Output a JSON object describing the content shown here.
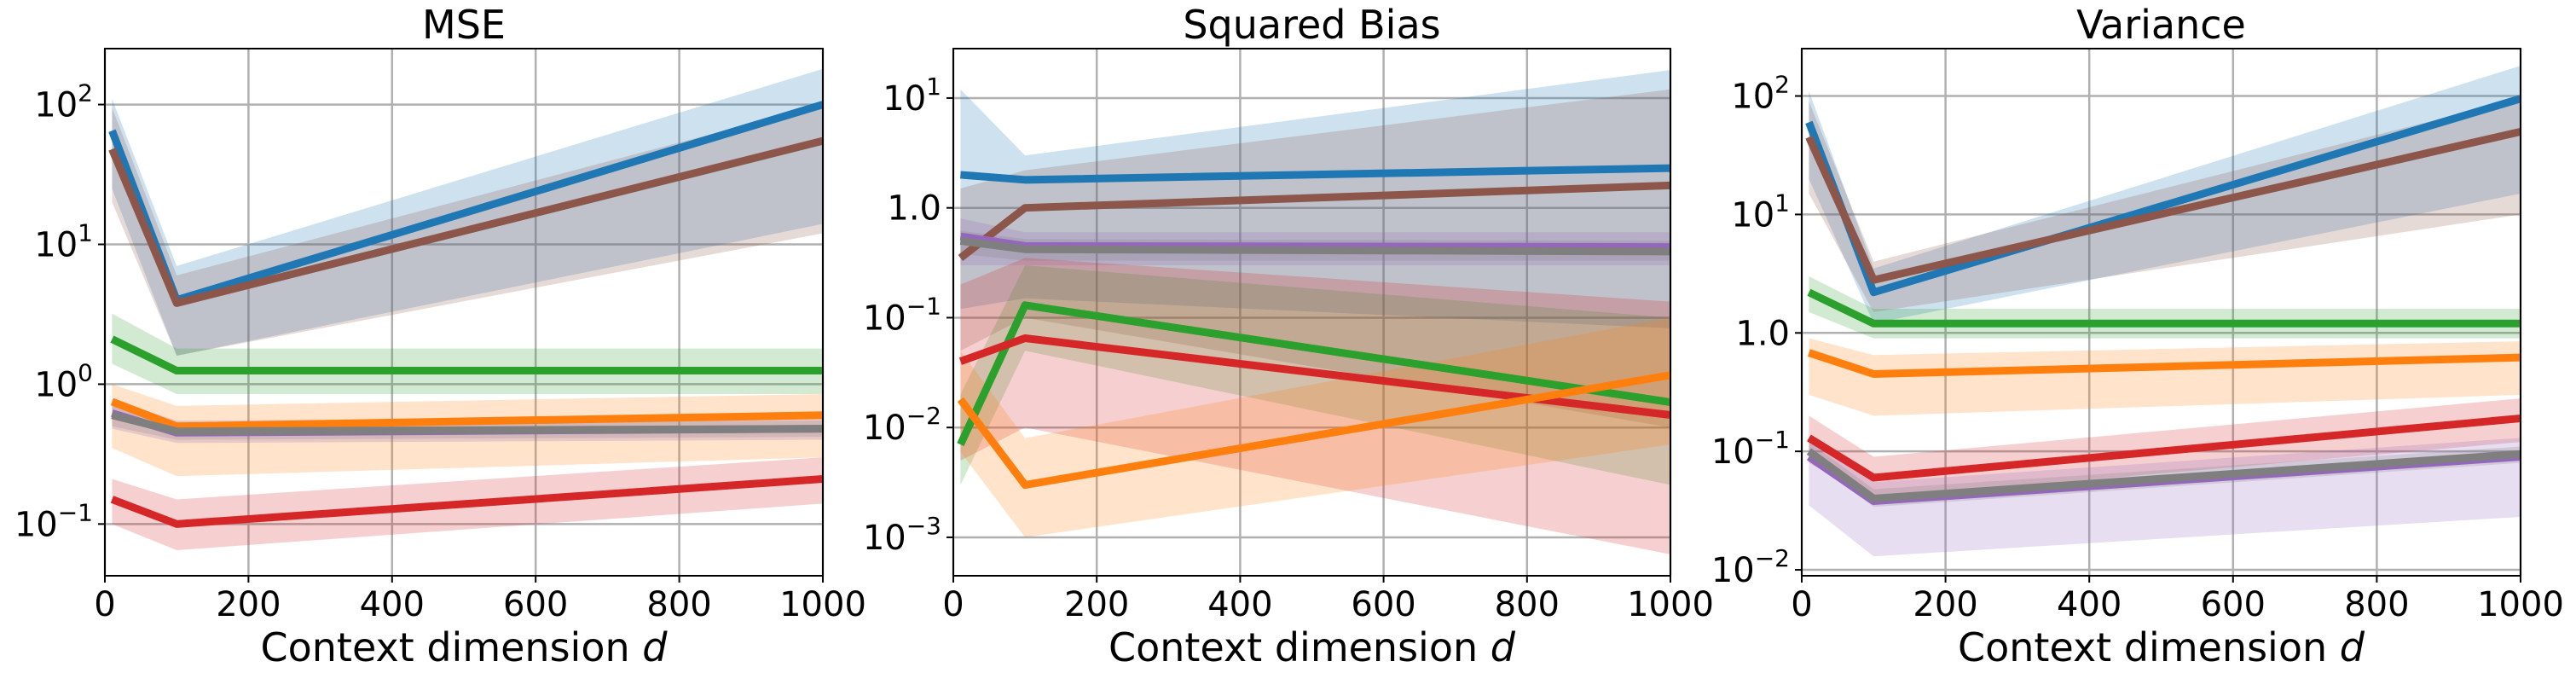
{
  "chart_data": [
    {
      "type": "line",
      "title": "MSE",
      "xlabel": "Context dimension",
      "xlabel_var": "d",
      "xlim": [
        0,
        1000
      ],
      "ylim_log10": [
        -1.37,
        2.4
      ],
      "yscale": "log",
      "xticks": [
        0,
        200,
        400,
        600,
        800,
        1000
      ],
      "yticks": [
        {
          "exp": -1,
          "label": "10",
          "sup": "−1"
        },
        {
          "exp": 0,
          "label": "10",
          "sup": "0"
        },
        {
          "exp": 1,
          "label": "10",
          "sup": "1"
        },
        {
          "exp": 2,
          "label": "10",
          "sup": "2"
        }
      ],
      "grid": true,
      "x": [
        10,
        100,
        1000
      ],
      "series": [
        {
          "color": "#1f77b4",
          "values": [
            65,
            4.0,
            100
          ],
          "lower": [
            25,
            1.6,
            14
          ],
          "upper": [
            110,
            7.0,
            180
          ]
        },
        {
          "color": "#8c564b",
          "values": [
            48,
            3.8,
            55
          ],
          "lower": [
            20,
            1.6,
            12
          ],
          "upper": [
            95,
            6.0,
            100
          ]
        },
        {
          "color": "#2ca02c",
          "values": [
            2.1,
            1.25,
            1.25
          ],
          "lower": [
            1.4,
            0.85,
            0.85
          ],
          "upper": [
            3.2,
            1.8,
            1.8
          ]
        },
        {
          "color": "#ff7f0e",
          "values": [
            0.75,
            0.5,
            0.6
          ],
          "lower": [
            0.35,
            0.22,
            0.3
          ],
          "upper": [
            1.0,
            0.7,
            0.85
          ]
        },
        {
          "color": "#9467bd",
          "values": [
            0.62,
            0.45,
            0.48
          ],
          "lower": [
            0.48,
            0.38,
            0.4
          ],
          "upper": [
            0.78,
            0.55,
            0.58
          ]
        },
        {
          "color": "#7f7f7f",
          "values": [
            0.6,
            0.46,
            0.48
          ],
          "lower": [
            0.5,
            0.4,
            0.42
          ],
          "upper": [
            0.7,
            0.52,
            0.55
          ]
        },
        {
          "color": "#d62728",
          "values": [
            0.15,
            0.1,
            0.21
          ],
          "lower": [
            0.1,
            0.065,
            0.14
          ],
          "upper": [
            0.21,
            0.15,
            0.3
          ]
        }
      ]
    },
    {
      "type": "line",
      "title": "Squared Bias",
      "xlabel": "Context dimension",
      "xlabel_var": "d",
      "xlim": [
        0,
        1000
      ],
      "ylim_log10": [
        -3.35,
        1.45
      ],
      "yscale": "log",
      "xticks": [
        0,
        200,
        400,
        600,
        800,
        1000
      ],
      "yticks": [
        {
          "exp": -3,
          "label": "10",
          "sup": "−3"
        },
        {
          "exp": -2,
          "label": "10",
          "sup": "−2"
        },
        {
          "exp": -1,
          "label": "10",
          "sup": "−1"
        },
        {
          "exp": 0,
          "label": "1.0",
          "sup": ""
        },
        {
          "exp": 1,
          "label": "10",
          "sup": "1"
        }
      ],
      "grid": true,
      "x": [
        10,
        100,
        1000
      ],
      "series": [
        {
          "color": "#1f77b4",
          "values": [
            2.0,
            1.8,
            2.3
          ],
          "lower": [
            0.12,
            0.15,
            0.08
          ],
          "upper": [
            12,
            3.0,
            18
          ]
        },
        {
          "color": "#8c564b",
          "values": [
            0.35,
            1.0,
            1.6
          ],
          "lower": [
            0.05,
            0.1,
            0.01
          ],
          "upper": [
            1.5,
            2.2,
            12
          ]
        },
        {
          "color": "#9467bd",
          "values": [
            0.55,
            0.45,
            0.44
          ],
          "lower": [
            0.3,
            0.3,
            0.3
          ],
          "upper": [
            0.8,
            0.6,
            0.6
          ]
        },
        {
          "color": "#7f7f7f",
          "values": [
            0.5,
            0.42,
            0.4
          ],
          "lower": [
            0.38,
            0.33,
            0.33
          ],
          "upper": [
            0.62,
            0.52,
            0.5
          ]
        },
        {
          "color": "#2ca02c",
          "values": [
            0.007,
            0.13,
            0.017
          ],
          "lower": [
            0.003,
            0.05,
            0.003
          ],
          "upper": [
            0.02,
            0.3,
            0.1
          ]
        },
        {
          "color": "#d62728",
          "values": [
            0.04,
            0.065,
            0.013
          ],
          "lower": [
            0.005,
            0.01,
            0.0007
          ],
          "upper": [
            0.2,
            0.35,
            0.14
          ]
        },
        {
          "color": "#ff7f0e",
          "values": [
            0.018,
            0.003,
            0.03
          ],
          "lower": [
            0.006,
            0.001,
            0.007
          ],
          "upper": [
            0.05,
            0.008,
            0.1
          ]
        }
      ]
    },
    {
      "type": "line",
      "title": "Variance",
      "xlabel": "Context dimension",
      "xlabel_var": "d",
      "xlim": [
        0,
        1000
      ],
      "ylim_log10": [
        -2.05,
        2.4
      ],
      "yscale": "log",
      "xticks": [
        0,
        200,
        400,
        600,
        800,
        1000
      ],
      "yticks": [
        {
          "exp": -2,
          "label": "10",
          "sup": "−2"
        },
        {
          "exp": -1,
          "label": "10",
          "sup": "−1"
        },
        {
          "exp": 0,
          "label": "1.0",
          "sup": ""
        },
        {
          "exp": 1,
          "label": "10",
          "sup": "1"
        },
        {
          "exp": 2,
          "label": "10",
          "sup": "2"
        }
      ],
      "grid": true,
      "x": [
        10,
        100,
        1000
      ],
      "series": [
        {
          "color": "#1f77b4",
          "values": [
            60,
            2.2,
            95
          ],
          "lower": [
            20,
            1.2,
            15
          ],
          "upper": [
            110,
            3.5,
            180
          ]
        },
        {
          "color": "#8c564b",
          "values": [
            45,
            2.8,
            50
          ],
          "lower": [
            15,
            1.5,
            10
          ],
          "upper": [
            90,
            4.0,
            95
          ]
        },
        {
          "color": "#2ca02c",
          "values": [
            2.2,
            1.2,
            1.2
          ],
          "lower": [
            1.5,
            0.9,
            0.9
          ],
          "upper": [
            3.0,
            1.6,
            1.6
          ]
        },
        {
          "color": "#ff7f0e",
          "values": [
            0.68,
            0.45,
            0.62
          ],
          "lower": [
            0.3,
            0.2,
            0.3
          ],
          "upper": [
            0.9,
            0.65,
            0.85
          ]
        },
        {
          "color": "#d62728",
          "values": [
            0.13,
            0.06,
            0.19
          ],
          "lower": [
            0.08,
            0.04,
            0.12
          ],
          "upper": [
            0.2,
            0.09,
            0.28
          ]
        },
        {
          "color": "#9467bd",
          "values": [
            0.09,
            0.038,
            0.09
          ],
          "lower": [
            0.035,
            0.013,
            0.028
          ],
          "upper": [
            0.13,
            0.055,
            0.13
          ]
        },
        {
          "color": "#7f7f7f",
          "values": [
            0.1,
            0.04,
            0.095
          ],
          "lower": [
            0.085,
            0.034,
            0.08
          ],
          "upper": [
            0.12,
            0.048,
            0.11
          ]
        }
      ]
    }
  ]
}
